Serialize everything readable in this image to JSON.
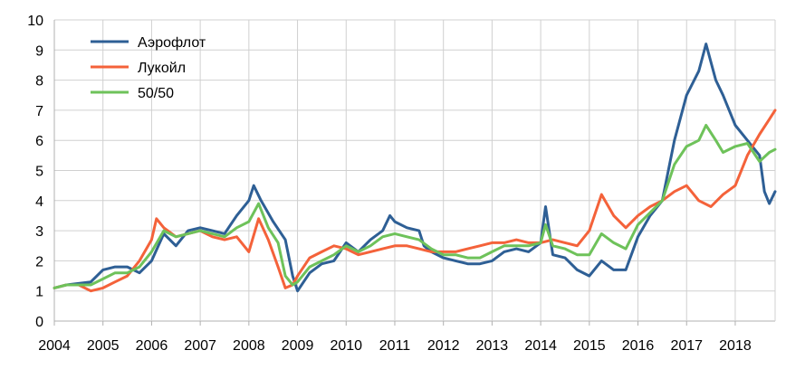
{
  "chart_data": {
    "type": "line",
    "title": "",
    "xlabel": "",
    "ylabel": "",
    "xlim": [
      2004,
      2018.82
    ],
    "ylim": [
      0,
      10
    ],
    "grid": true,
    "legend_position": "top-left",
    "x_ticks": [
      "2004",
      "2005",
      "2006",
      "2007",
      "2008",
      "2009",
      "2010",
      "2011",
      "2012",
      "2013",
      "2014",
      "2015",
      "2016",
      "2017",
      "2018"
    ],
    "y_ticks": [
      "0",
      "1",
      "2",
      "3",
      "4",
      "5",
      "6",
      "7",
      "8",
      "9",
      "10"
    ],
    "colors": {
      "Аэрофлот": "#2e5f95",
      "Лукойл": "#f4623a",
      "50/50": "#6ec25a"
    },
    "series": [
      {
        "name": "Аэрофлот",
        "x": [
          2004.0,
          2004.25,
          2004.5,
          2004.75,
          2005.0,
          2005.25,
          2005.5,
          2005.75,
          2006.0,
          2006.25,
          2006.5,
          2006.75,
          2007.0,
          2007.25,
          2007.5,
          2007.75,
          2008.0,
          2008.1,
          2008.25,
          2008.5,
          2008.75,
          2008.9,
          2009.0,
          2009.25,
          2009.5,
          2009.75,
          2010.0,
          2010.25,
          2010.5,
          2010.75,
          2010.9,
          2011.0,
          2011.25,
          2011.5,
          2011.6,
          2011.75,
          2012.0,
          2012.25,
          2012.5,
          2012.75,
          2013.0,
          2013.25,
          2013.5,
          2013.75,
          2014.0,
          2014.1,
          2014.25,
          2014.5,
          2014.75,
          2015.0,
          2015.25,
          2015.5,
          2015.75,
          2016.0,
          2016.25,
          2016.5,
          2016.75,
          2017.0,
          2017.25,
          2017.4,
          2017.6,
          2017.75,
          2018.0,
          2018.25,
          2018.5,
          2018.6,
          2018.7,
          2018.82
        ],
        "y": [
          1.1,
          1.2,
          1.25,
          1.3,
          1.7,
          1.8,
          1.8,
          1.6,
          2.0,
          2.9,
          2.5,
          3.0,
          3.1,
          3.0,
          2.9,
          3.5,
          4.0,
          4.5,
          4.0,
          3.3,
          2.7,
          1.5,
          1.0,
          1.6,
          1.9,
          2.0,
          2.6,
          2.3,
          2.7,
          3.0,
          3.5,
          3.3,
          3.1,
          3.0,
          2.5,
          2.3,
          2.1,
          2.0,
          1.9,
          1.9,
          2.0,
          2.3,
          2.4,
          2.3,
          2.6,
          3.8,
          2.2,
          2.1,
          1.7,
          1.5,
          2.0,
          1.7,
          1.7,
          2.8,
          3.5,
          4.0,
          6.0,
          7.5,
          8.3,
          9.2,
          8.0,
          7.5,
          6.5,
          6.0,
          5.5,
          4.3,
          3.9,
          4.3
        ]
      },
      {
        "name": "Лукойл",
        "x": [
          2004.0,
          2004.25,
          2004.5,
          2004.75,
          2005.0,
          2005.25,
          2005.5,
          2005.75,
          2006.0,
          2006.1,
          2006.25,
          2006.5,
          2006.75,
          2007.0,
          2007.25,
          2007.5,
          2007.75,
          2008.0,
          2008.2,
          2008.4,
          2008.6,
          2008.75,
          2008.9,
          2009.0,
          2009.25,
          2009.5,
          2009.75,
          2010.0,
          2010.25,
          2010.5,
          2010.75,
          2011.0,
          2011.25,
          2011.5,
          2011.75,
          2012.0,
          2012.25,
          2012.5,
          2012.75,
          2013.0,
          2013.25,
          2013.5,
          2013.75,
          2014.0,
          2014.25,
          2014.5,
          2014.75,
          2015.0,
          2015.25,
          2015.5,
          2015.75,
          2016.0,
          2016.25,
          2016.5,
          2016.75,
          2017.0,
          2017.25,
          2017.5,
          2017.75,
          2018.0,
          2018.25,
          2018.5,
          2018.7,
          2018.82
        ],
        "y": [
          1.1,
          1.2,
          1.2,
          1.0,
          1.1,
          1.3,
          1.5,
          2.0,
          2.7,
          3.4,
          3.1,
          2.8,
          2.9,
          3.0,
          2.8,
          2.7,
          2.8,
          2.3,
          3.4,
          2.7,
          1.8,
          1.1,
          1.2,
          1.5,
          2.1,
          2.3,
          2.5,
          2.4,
          2.2,
          2.3,
          2.4,
          2.5,
          2.5,
          2.4,
          2.3,
          2.3,
          2.3,
          2.4,
          2.5,
          2.6,
          2.6,
          2.7,
          2.6,
          2.6,
          2.7,
          2.6,
          2.5,
          3.0,
          4.2,
          3.5,
          3.1,
          3.5,
          3.8,
          4.0,
          4.3,
          4.5,
          4.0,
          3.8,
          4.2,
          4.5,
          5.5,
          6.2,
          6.7,
          7.0
        ]
      },
      {
        "name": "50/50",
        "x": [
          2004.0,
          2004.25,
          2004.5,
          2004.75,
          2005.0,
          2005.25,
          2005.5,
          2005.75,
          2006.0,
          2006.25,
          2006.5,
          2006.75,
          2007.0,
          2007.25,
          2007.5,
          2007.75,
          2008.0,
          2008.2,
          2008.4,
          2008.6,
          2008.75,
          2008.9,
          2009.0,
          2009.25,
          2009.5,
          2009.75,
          2010.0,
          2010.25,
          2010.5,
          2010.75,
          2011.0,
          2011.25,
          2011.5,
          2011.75,
          2012.0,
          2012.25,
          2012.5,
          2012.75,
          2013.0,
          2013.25,
          2013.5,
          2013.75,
          2014.0,
          2014.1,
          2014.25,
          2014.5,
          2014.75,
          2015.0,
          2015.25,
          2015.5,
          2015.75,
          2016.0,
          2016.25,
          2016.5,
          2016.75,
          2017.0,
          2017.25,
          2017.4,
          2017.6,
          2017.75,
          2018.0,
          2018.25,
          2018.5,
          2018.7,
          2018.82
        ],
        "y": [
          1.1,
          1.2,
          1.2,
          1.2,
          1.4,
          1.6,
          1.6,
          1.8,
          2.3,
          3.0,
          2.8,
          2.9,
          3.0,
          2.9,
          2.8,
          3.1,
          3.3,
          3.9,
          3.1,
          2.6,
          1.5,
          1.2,
          1.3,
          1.8,
          2.0,
          2.2,
          2.5,
          2.3,
          2.5,
          2.8,
          2.9,
          2.8,
          2.7,
          2.4,
          2.2,
          2.2,
          2.1,
          2.1,
          2.3,
          2.5,
          2.5,
          2.5,
          2.6,
          3.2,
          2.5,
          2.4,
          2.2,
          2.2,
          2.9,
          2.6,
          2.4,
          3.2,
          3.6,
          4.0,
          5.2,
          5.8,
          6.0,
          6.5,
          6.0,
          5.6,
          5.8,
          5.9,
          5.3,
          5.6,
          5.7
        ]
      }
    ]
  }
}
